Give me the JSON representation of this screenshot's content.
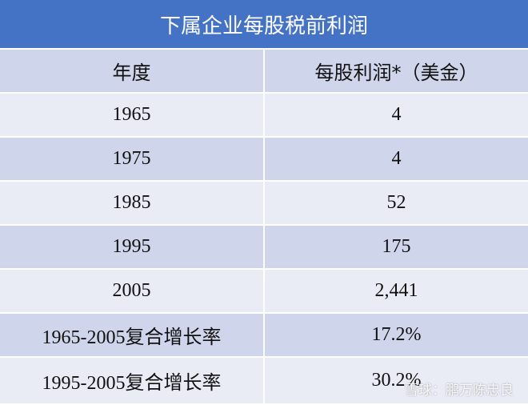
{
  "title": "下属企业每股税前利润",
  "table": {
    "header": [
      "年度",
      "每股利润*（美金）"
    ],
    "rows": [
      [
        "1965",
        "4"
      ],
      [
        "1975",
        "4"
      ],
      [
        "1985",
        "52"
      ],
      [
        "1995",
        "175"
      ],
      [
        "2005",
        "2,441"
      ],
      [
        "1965-2005复合增长率",
        "17.2%"
      ],
      [
        "1995-2005复合增长率",
        "30.2%"
      ]
    ]
  },
  "watermark": "雪球：鹏万陈忠良"
}
